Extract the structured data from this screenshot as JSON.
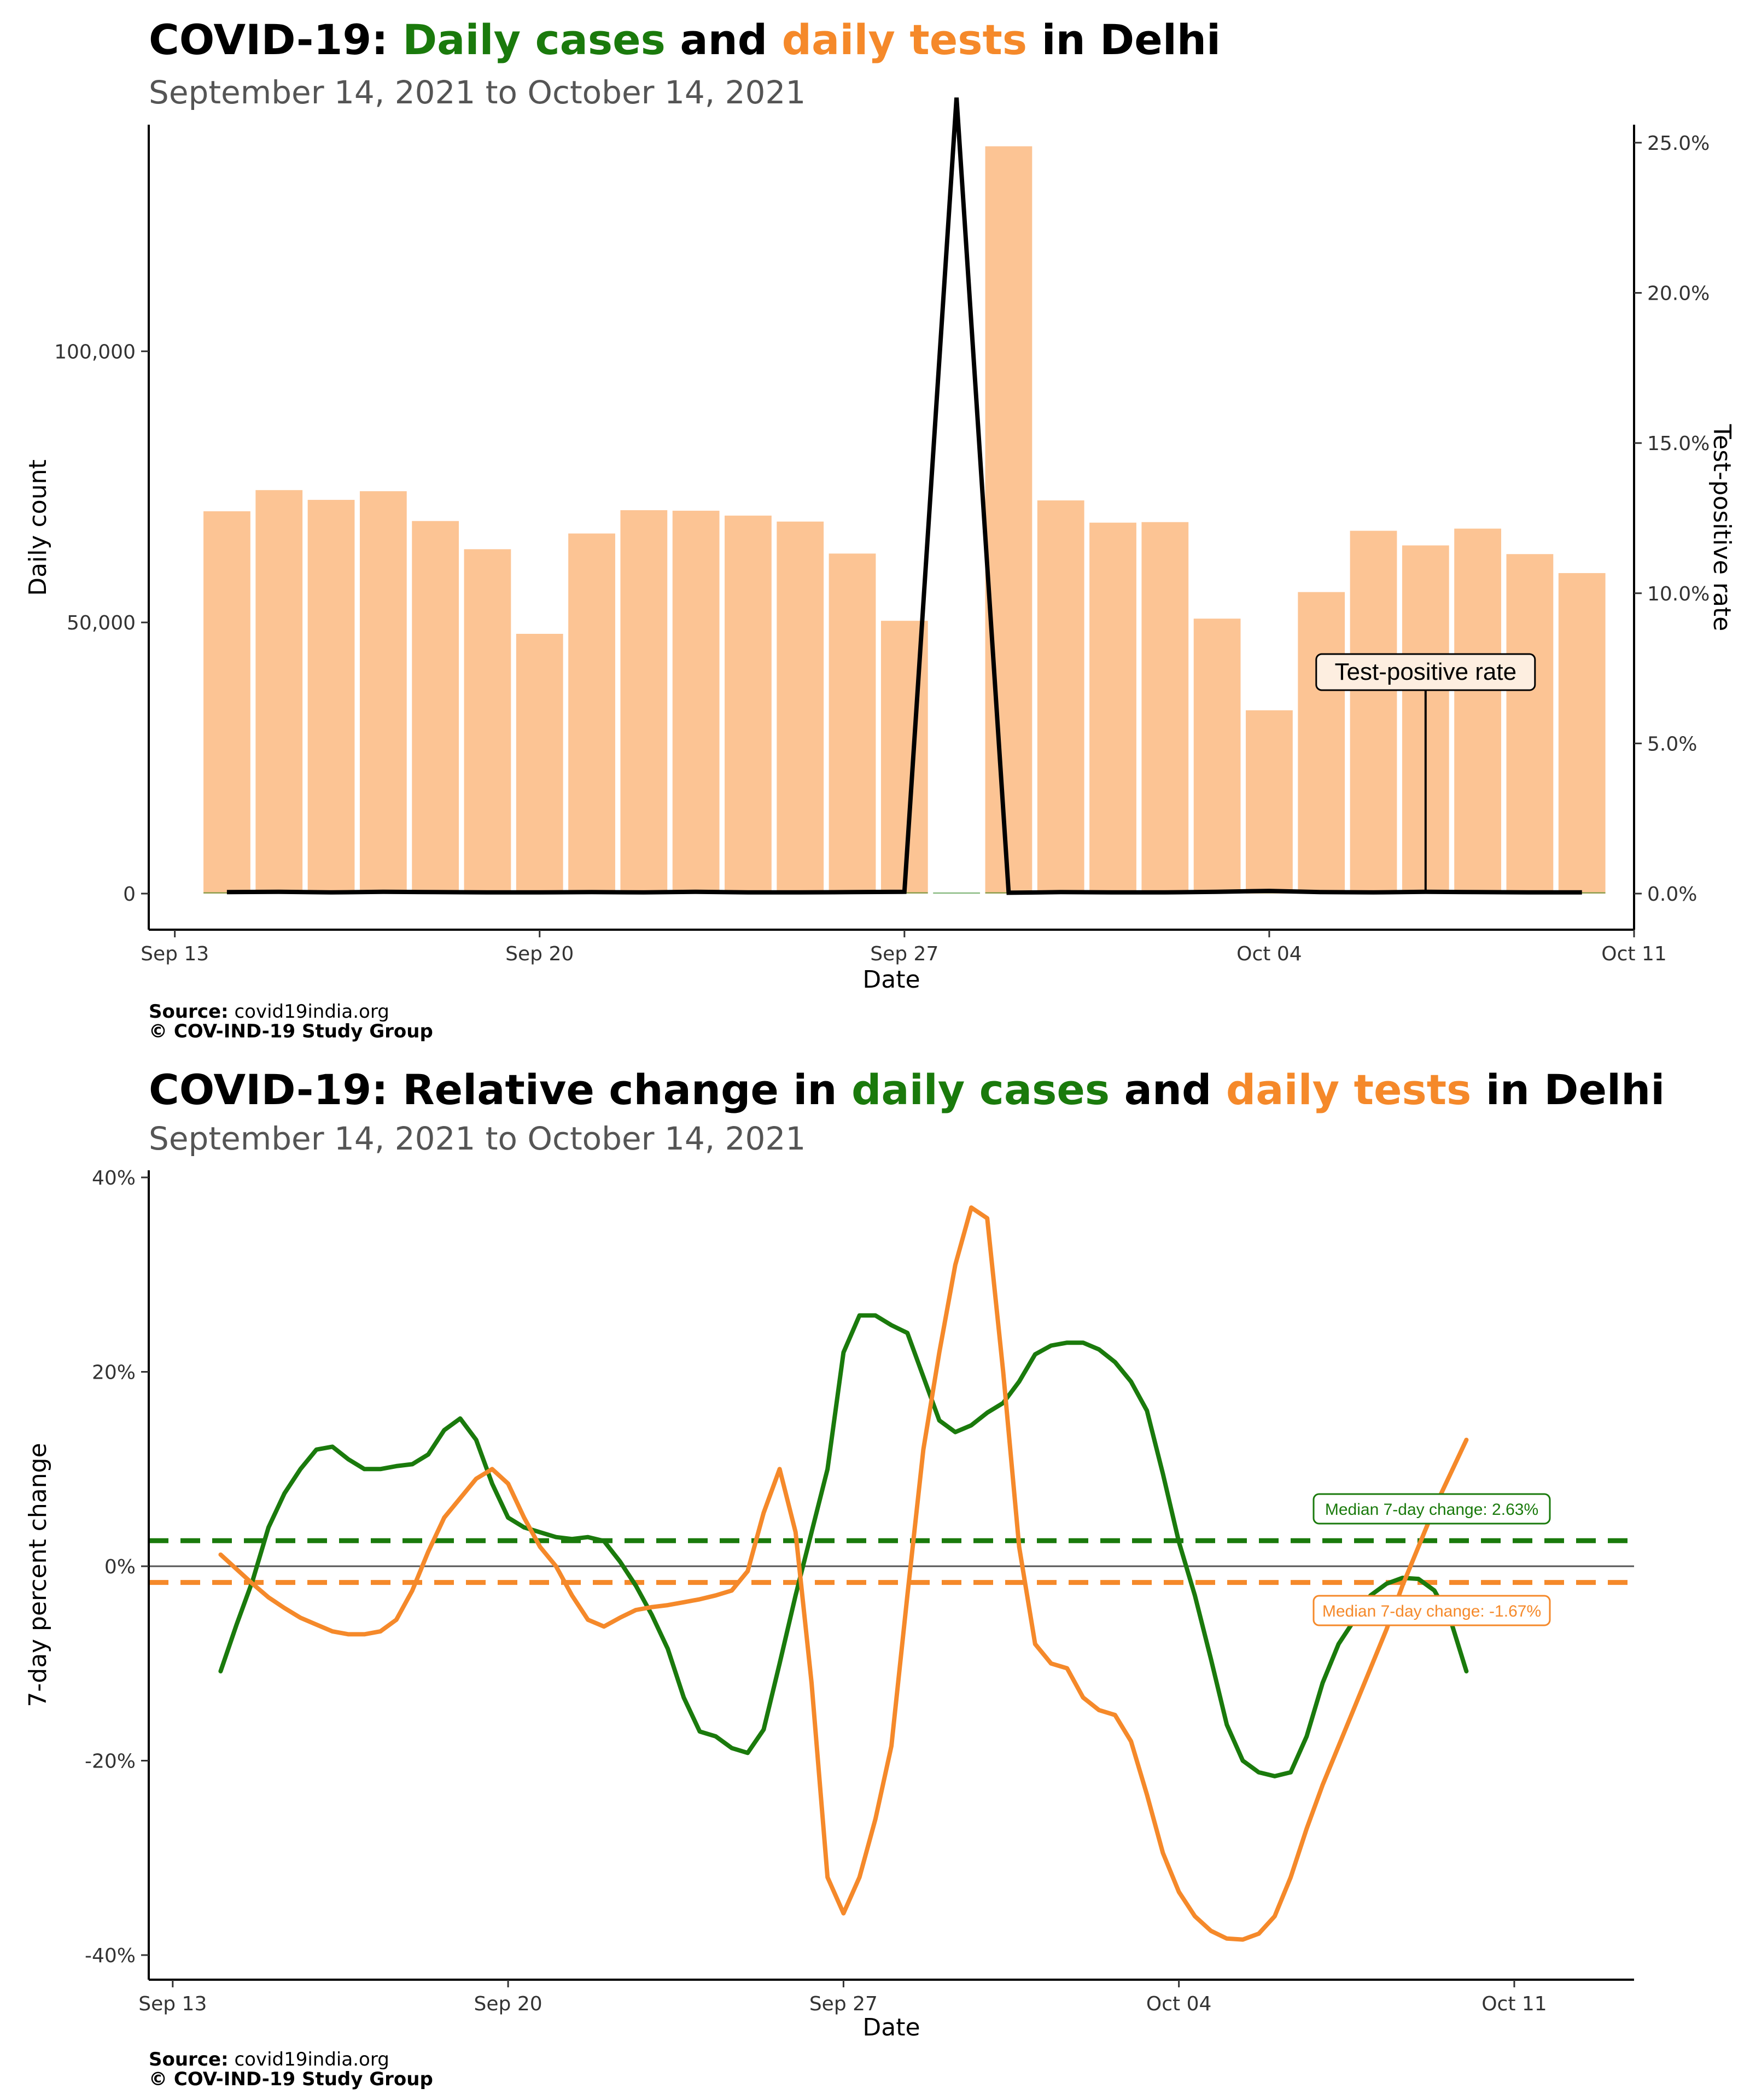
{
  "top": {
    "title": {
      "prefix": "COVID-19: ",
      "cases": "Daily cases",
      "and": " and ",
      "tests": "daily tests",
      "suffix": " in Delhi"
    },
    "subtitle": "September 14, 2021 to October 14, 2021",
    "source_label": "Source:",
    "source_value": " covid19india.org",
    "copyright": "© COV-IND-19 Study Group"
  },
  "bottom": {
    "title": {
      "prefix": "COVID-19: Relative change in ",
      "cases": "daily cases",
      "and": " and ",
      "tests": "daily tests",
      "suffix": " in Delhi"
    },
    "subtitle": "September 14, 2021 to October 14, 2021",
    "source_label": "Source:",
    "source_value": " covid19india.org",
    "copyright": "© COV-IND-19 Study Group"
  },
  "colors": {
    "cases": "#1a7a0c",
    "tests": "#f5892a",
    "tests_bar": "#fcc494",
    "tpr_line": "#000000"
  },
  "chart_data": [
    {
      "type": "bar",
      "xlabel": "Date",
      "ylabel": "Daily count",
      "y2label": "Test-positive rate",
      "xlim": [
        "2021-09-12T12:00",
        "2021-10-11"
      ],
      "ylim": [
        0,
        144000
      ],
      "y2lim": [
        0,
        0.26
      ],
      "x_ticks": [
        {
          "date": "2021-09-13",
          "label": "Sep 13"
        },
        {
          "date": "2021-09-20",
          "label": "Sep 20"
        },
        {
          "date": "2021-09-27",
          "label": "Sep 27"
        },
        {
          "date": "2021-10-04",
          "label": "Oct 04"
        },
        {
          "date": "2021-10-11",
          "label": "Oct 11"
        }
      ],
      "y_ticks": [
        {
          "value": 0,
          "label": "0"
        },
        {
          "value": 50000,
          "label": "50,000"
        },
        {
          "value": 100000,
          "label": "100,000"
        }
      ],
      "y2_ticks": [
        {
          "value": 0.0,
          "label": "0.0%"
        },
        {
          "value": 0.05,
          "label": "5.0%"
        },
        {
          "value": 0.1,
          "label": "10.0%"
        },
        {
          "value": 0.15,
          "label": "15.0%"
        },
        {
          "value": 0.2,
          "label": "20.0%"
        },
        {
          "value": 0.25,
          "label": "25.0%"
        }
      ],
      "dates": [
        "2021-09-14",
        "2021-09-15",
        "2021-09-16",
        "2021-09-17",
        "2021-09-18",
        "2021-09-19",
        "2021-09-20",
        "2021-09-21",
        "2021-09-22",
        "2021-09-23",
        "2021-09-24",
        "2021-09-25",
        "2021-09-26",
        "2021-09-27",
        "2021-09-28",
        "2021-09-29",
        "2021-09-30",
        "2021-10-01",
        "2021-10-02",
        "2021-10-03",
        "2021-10-04",
        "2021-10-05",
        "2021-10-06",
        "2021-10-07",
        "2021-10-08",
        "2021-10-09",
        "2021-10-10"
      ],
      "series": [
        {
          "name": "daily tests",
          "values": [
            70500,
            74400,
            72600,
            74200,
            68700,
            63500,
            47900,
            66400,
            70700,
            70600,
            69700,
            68600,
            62700,
            50300,
            0,
            137800,
            72500,
            68400,
            68500,
            50700,
            33800,
            55600,
            66900,
            64200,
            67300,
            62600,
            59100
          ]
        },
        {
          "name": "daily cases",
          "values": [
            36,
            41,
            34,
            42,
            38,
            34,
            29,
            36,
            41,
            37,
            43,
            31,
            35,
            36,
            1,
            36,
            41,
            38,
            37,
            39,
            43,
            39,
            35,
            36,
            40,
            38,
            37
          ]
        },
        {
          "name": "Test-positive rate",
          "values": [
            0.0005,
            0.0006,
            0.0004,
            0.0006,
            0.0005,
            0.0004,
            0.0004,
            0.0005,
            0.0004,
            0.0006,
            0.0004,
            0.0004,
            0.0005,
            0.0006,
            0.265,
            0.0003,
            0.0005,
            0.0004,
            0.0004,
            0.0006,
            0.0009,
            0.0005,
            0.0004,
            0.0006,
            0.0005,
            0.0004,
            0.0004
          ]
        }
      ],
      "annotation": {
        "label": "Test-positive rate",
        "date": "2021-10-07"
      }
    },
    {
      "type": "line",
      "xlabel": "Date",
      "ylabel": "7-day percent change",
      "xlim": [
        "2021-09-12T12:00",
        "2021-10-13T12:00"
      ],
      "ylim": [
        -42.5,
        40.5
      ],
      "x_ticks": [
        {
          "date": "2021-09-13",
          "label": "Sep 13"
        },
        {
          "date": "2021-09-20",
          "label": "Sep 20"
        },
        {
          "date": "2021-09-27",
          "label": "Sep 27"
        },
        {
          "date": "2021-10-04",
          "label": "Oct 04"
        },
        {
          "date": "2021-10-11",
          "label": "Oct 11"
        }
      ],
      "y_ticks": [
        {
          "value": -40,
          "label": "-40%"
        },
        {
          "value": -20,
          "label": "-20%"
        },
        {
          "value": 0,
          "label": "0%"
        },
        {
          "value": 20,
          "label": "20%"
        },
        {
          "value": 40,
          "label": "40%"
        }
      ],
      "series": [
        {
          "name": "daily cases",
          "points": [
            [
              "2021-09-14T00:00",
              -10.8
            ],
            [
              "2021-09-14T08:00",
              -6.0
            ],
            [
              "2021-09-14T16:00",
              -1.5
            ],
            [
              "2021-09-15T00:00",
              4.0
            ],
            [
              "2021-09-15T08:00",
              7.5
            ],
            [
              "2021-09-15T16:00",
              10.0
            ],
            [
              "2021-09-16T00:00",
              12.0
            ],
            [
              "2021-09-16T08:00",
              12.3
            ],
            [
              "2021-09-16T16:00",
              11.0
            ],
            [
              "2021-09-17T00:00",
              10.0
            ],
            [
              "2021-09-17T08:00",
              10.0
            ],
            [
              "2021-09-17T16:00",
              10.3
            ],
            [
              "2021-09-18T00:00",
              10.5
            ],
            [
              "2021-09-18T08:00",
              11.5
            ],
            [
              "2021-09-18T16:00",
              14.0
            ],
            [
              "2021-09-19T00:00",
              15.2
            ],
            [
              "2021-09-19T08:00",
              13.0
            ],
            [
              "2021-09-19T16:00",
              8.5
            ],
            [
              "2021-09-20T00:00",
              5.0
            ],
            [
              "2021-09-20T08:00",
              4.0
            ],
            [
              "2021-09-20T16:00",
              3.5
            ],
            [
              "2021-09-21T00:00",
              3.0
            ],
            [
              "2021-09-21T08:00",
              2.8
            ],
            [
              "2021-09-21T16:00",
              3.0
            ],
            [
              "2021-09-22T00:00",
              2.6
            ],
            [
              "2021-09-22T08:00",
              0.5
            ],
            [
              "2021-09-22T16:00",
              -2.0
            ],
            [
              "2021-09-23T00:00",
              -5.0
            ],
            [
              "2021-09-23T08:00",
              -8.5
            ],
            [
              "2021-09-23T16:00",
              -13.5
            ],
            [
              "2021-09-24T00:00",
              -17.0
            ],
            [
              "2021-09-24T08:00",
              -17.5
            ],
            [
              "2021-09-24T16:00",
              -18.7
            ],
            [
              "2021-09-25T00:00",
              -19.2
            ],
            [
              "2021-09-25T08:00",
              -16.8
            ],
            [
              "2021-09-25T16:00",
              -10.0
            ],
            [
              "2021-09-26T00:00",
              -3.0
            ],
            [
              "2021-09-26T08:00",
              3.5
            ],
            [
              "2021-09-26T16:00",
              10.0
            ],
            [
              "2021-09-27T00:00",
              22.0
            ],
            [
              "2021-09-27T08:00",
              25.8
            ],
            [
              "2021-09-27T16:00",
              25.8
            ],
            [
              "2021-09-28T00:00",
              24.8
            ],
            [
              "2021-09-28T08:00",
              24.0
            ],
            [
              "2021-09-28T16:00",
              19.5
            ],
            [
              "2021-09-29T00:00",
              15.0
            ],
            [
              "2021-09-29T08:00",
              13.8
            ],
            [
              "2021-09-29T16:00",
              14.5
            ],
            [
              "2021-09-30T00:00",
              15.8
            ],
            [
              "2021-09-30T08:00",
              16.8
            ],
            [
              "2021-09-30T16:00",
              19.0
            ],
            [
              "2021-10-01T00:00",
              21.8
            ],
            [
              "2021-10-01T08:00",
              22.7
            ],
            [
              "2021-10-01T16:00",
              23.0
            ],
            [
              "2021-10-02T00:00",
              23.0
            ],
            [
              "2021-10-02T08:00",
              22.3
            ],
            [
              "2021-10-02T16:00",
              21.0
            ],
            [
              "2021-10-03T00:00",
              19.0
            ],
            [
              "2021-10-03T08:00",
              16.0
            ],
            [
              "2021-10-03T16:00",
              9.5
            ],
            [
              "2021-10-04T00:00",
              2.5
            ],
            [
              "2021-10-04T08:00",
              -3.0
            ],
            [
              "2021-10-04T16:00",
              -9.5
            ],
            [
              "2021-10-05T00:00",
              -16.3
            ],
            [
              "2021-10-05T08:00",
              -20.0
            ],
            [
              "2021-10-05T16:00",
              -21.2
            ],
            [
              "2021-10-06T00:00",
              -21.6
            ],
            [
              "2021-10-06T08:00",
              -21.2
            ],
            [
              "2021-10-06T16:00",
              -17.5
            ],
            [
              "2021-10-07T00:00",
              -12.0
            ],
            [
              "2021-10-07T08:00",
              -8.0
            ],
            [
              "2021-10-07T16:00",
              -5.5
            ],
            [
              "2021-10-08T00:00",
              -3.0
            ],
            [
              "2021-10-08T08:00",
              -1.8
            ],
            [
              "2021-10-08T16:00",
              -1.2
            ],
            [
              "2021-10-09T00:00",
              -1.3
            ],
            [
              "2021-10-09T08:00",
              -2.5
            ],
            [
              "2021-10-09T16:00",
              -5.5
            ],
            [
              "2021-10-10T00:00",
              -10.8
            ]
          ]
        },
        {
          "name": "daily tests",
          "points": [
            [
              "2021-09-14T00:00",
              1.2
            ],
            [
              "2021-09-14T08:00",
              -0.3
            ],
            [
              "2021-09-14T16:00",
              -1.8
            ],
            [
              "2021-09-15T00:00",
              -3.2
            ],
            [
              "2021-09-15T08:00",
              -4.3
            ],
            [
              "2021-09-15T16:00",
              -5.3
            ],
            [
              "2021-09-16T00:00",
              -6.0
            ],
            [
              "2021-09-16T08:00",
              -6.7
            ],
            [
              "2021-09-16T16:00",
              -7.0
            ],
            [
              "2021-09-17T00:00",
              -7.0
            ],
            [
              "2021-09-17T08:00",
              -6.7
            ],
            [
              "2021-09-17T16:00",
              -5.5
            ],
            [
              "2021-09-18T00:00",
              -2.5
            ],
            [
              "2021-09-18T08:00",
              1.5
            ],
            [
              "2021-09-18T16:00",
              5.0
            ],
            [
              "2021-09-19T00:00",
              7.0
            ],
            [
              "2021-09-19T08:00",
              9.0
            ],
            [
              "2021-09-19T16:00",
              10.0
            ],
            [
              "2021-09-20T00:00",
              8.5
            ],
            [
              "2021-09-20T08:00",
              5.0
            ],
            [
              "2021-09-20T16:00",
              2.0
            ],
            [
              "2021-09-21T00:00",
              0.0
            ],
            [
              "2021-09-21T08:00",
              -3.0
            ],
            [
              "2021-09-21T16:00",
              -5.5
            ],
            [
              "2021-09-22T00:00",
              -6.2
            ],
            [
              "2021-09-22T08:00",
              -5.3
            ],
            [
              "2021-09-22T16:00",
              -4.5
            ],
            [
              "2021-09-23T00:00",
              -4.2
            ],
            [
              "2021-09-23T08:00",
              -4.0
            ],
            [
              "2021-09-23T16:00",
              -3.7
            ],
            [
              "2021-09-24T00:00",
              -3.4
            ],
            [
              "2021-09-24T08:00",
              -3.0
            ],
            [
              "2021-09-24T16:00",
              -2.5
            ],
            [
              "2021-09-25T00:00",
              -0.5
            ],
            [
              "2021-09-25T08:00",
              5.5
            ],
            [
              "2021-09-25T16:00",
              10.0
            ],
            [
              "2021-09-26T00:00",
              3.5
            ],
            [
              "2021-09-26T08:00",
              -12.0
            ],
            [
              "2021-09-26T16:00",
              -32.0
            ],
            [
              "2021-09-27T00:00",
              -35.7
            ],
            [
              "2021-09-27T08:00",
              -32.0
            ],
            [
              "2021-09-27T16:00",
              -26.0
            ],
            [
              "2021-09-28T00:00",
              -18.5
            ],
            [
              "2021-09-28T08:00",
              -3.0
            ],
            [
              "2021-09-28T16:00",
              12.0
            ],
            [
              "2021-09-29T00:00",
              22.0
            ],
            [
              "2021-09-29T08:00",
              31.0
            ],
            [
              "2021-09-29T16:00",
              36.9
            ],
            [
              "2021-09-30T00:00",
              35.8
            ],
            [
              "2021-09-30T08:00",
              20.0
            ],
            [
              "2021-09-30T16:00",
              2.0
            ],
            [
              "2021-10-01T00:00",
              -8.0
            ],
            [
              "2021-10-01T08:00",
              -10.0
            ],
            [
              "2021-10-01T16:00",
              -10.5
            ],
            [
              "2021-10-02T00:00",
              -13.5
            ],
            [
              "2021-10-02T08:00",
              -14.8
            ],
            [
              "2021-10-02T16:00",
              -15.3
            ],
            [
              "2021-10-03T00:00",
              -18.0
            ],
            [
              "2021-10-03T08:00",
              -23.5
            ],
            [
              "2021-10-03T16:00",
              -29.5
            ],
            [
              "2021-10-04T00:00",
              -33.5
            ],
            [
              "2021-10-04T08:00",
              -36.0
            ],
            [
              "2021-10-04T16:00",
              -37.5
            ],
            [
              "2021-10-05T00:00",
              -38.3
            ],
            [
              "2021-10-05T08:00",
              -38.4
            ],
            [
              "2021-10-05T16:00",
              -37.8
            ],
            [
              "2021-10-06T00:00",
              -36.0
            ],
            [
              "2021-10-06T08:00",
              -32.0
            ],
            [
              "2021-10-06T16:00",
              -27.0
            ],
            [
              "2021-10-07T00:00",
              -22.5
            ],
            [
              "2021-10-07T08:00",
              -18.5
            ],
            [
              "2021-10-07T16:00",
              -14.5
            ],
            [
              "2021-10-08T00:00",
              -10.5
            ],
            [
              "2021-10-08T08:00",
              -6.5
            ],
            [
              "2021-10-08T16:00",
              -2.0
            ],
            [
              "2021-10-09T00:00",
              2.0
            ],
            [
              "2021-10-09T08:00",
              6.0
            ],
            [
              "2021-10-09T16:00",
              9.5
            ],
            [
              "2021-10-10T00:00",
              13.0
            ]
          ]
        }
      ],
      "medians": [
        {
          "series": "daily cases",
          "value": 2.63,
          "label": "Median 7-day change: 2.63%"
        },
        {
          "series": "daily tests",
          "value": -1.67,
          "label": "Median 7-day change: -1.67%"
        }
      ]
    }
  ]
}
